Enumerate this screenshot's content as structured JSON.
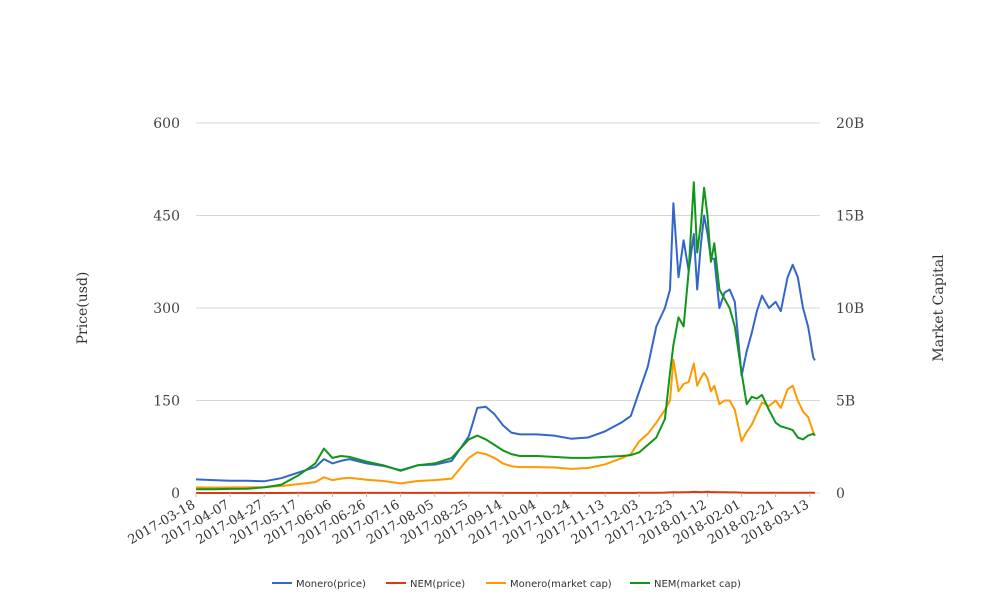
{
  "chart_data": {
    "type": "line",
    "title": "",
    "ylabel": "Price(usd)",
    "y2label": "Market Capital",
    "ylim": [
      0,
      600
    ],
    "y2lim": [
      0,
      20000000000
    ],
    "y_ticks": [
      "0",
      "150",
      "300",
      "450",
      "600"
    ],
    "y2_ticks": [
      "0",
      "5B",
      "10B",
      "15B",
      "20B"
    ],
    "x_ticks": [
      "2017-03-18",
      "2017-04-07",
      "2017-04-27",
      "2017-05-17",
      "2017-06-06",
      "2017-06-26",
      "2017-07-16",
      "2017-08-05",
      "2017-08-25",
      "2017-09-14",
      "2017-10-04",
      "2017-10-24",
      "2017-11-13",
      "2017-12-03",
      "2017-12-23",
      "2018-01-12",
      "2018-02-01",
      "2018-02-21",
      "2018-03-13"
    ],
    "x": [
      "2017-03-18",
      "2017-03-28",
      "2017-04-07",
      "2017-04-17",
      "2017-04-27",
      "2017-05-07",
      "2017-05-17",
      "2017-05-27",
      "2017-06-01",
      "2017-06-06",
      "2017-06-11",
      "2017-06-16",
      "2017-06-26",
      "2017-07-06",
      "2017-07-16",
      "2017-07-26",
      "2017-08-05",
      "2017-08-15",
      "2017-08-25",
      "2017-08-30",
      "2017-09-04",
      "2017-09-09",
      "2017-09-14",
      "2017-09-19",
      "2017-09-24",
      "2017-10-04",
      "2017-10-14",
      "2017-10-24",
      "2017-11-03",
      "2017-11-13",
      "2017-11-23",
      "2017-11-28",
      "2017-12-03",
      "2017-12-08",
      "2017-12-13",
      "2017-12-18",
      "2017-12-21",
      "2017-12-23",
      "2017-12-26",
      "2017-12-29",
      "2018-01-01",
      "2018-01-04",
      "2018-01-06",
      "2018-01-08",
      "2018-01-10",
      "2018-01-12",
      "2018-01-14",
      "2018-01-16",
      "2018-01-19",
      "2018-01-22",
      "2018-01-25",
      "2018-01-28",
      "2018-02-01",
      "2018-02-04",
      "2018-02-07",
      "2018-02-10",
      "2018-02-13",
      "2018-02-17",
      "2018-02-21",
      "2018-02-24",
      "2018-02-28",
      "2018-03-03",
      "2018-03-06",
      "2018-03-09",
      "2018-03-12",
      "2018-03-15",
      "2018-03-16"
    ],
    "series": [
      {
        "name": "Monero(price)",
        "color": "#3366cc",
        "axis": "left",
        "values": [
          22,
          21,
          20,
          20,
          19,
          24,
          33,
          42,
          55,
          48,
          52,
          55,
          48,
          44,
          37,
          45,
          46,
          52,
          92,
          138,
          140,
          128,
          110,
          98,
          95,
          95,
          93,
          88,
          90,
          100,
          115,
          125,
          165,
          205,
          270,
          300,
          330,
          470,
          350,
          410,
          360,
          420,
          330,
          400,
          450,
          420,
          380,
          380,
          300,
          325,
          330,
          310,
          190,
          230,
          260,
          295,
          320,
          300,
          310,
          295,
          350,
          370,
          350,
          300,
          270,
          220,
          215
        ]
      },
      {
        "name": "NEM(price)",
        "color": "#dc3912",
        "axis": "left",
        "values": [
          0.02,
          0.02,
          0.02,
          0.02,
          0.03,
          0.04,
          0.1,
          0.19,
          0.21,
          0.2,
          0.2,
          0.19,
          0.16,
          0.15,
          0.13,
          0.17,
          0.18,
          0.21,
          0.26,
          0.28,
          0.27,
          0.25,
          0.24,
          0.22,
          0.21,
          0.2,
          0.2,
          0.19,
          0.19,
          0.2,
          0.21,
          0.22,
          0.25,
          0.3,
          0.55,
          0.72,
          0.9,
          1.1,
          0.95,
          1.2,
          1.3,
          1.8,
          1.6,
          1.5,
          1.7,
          1.9,
          1.4,
          1.5,
          1.2,
          1.1,
          1.05,
          1.0,
          0.68,
          0.55,
          0.5,
          0.48,
          0.5,
          0.45,
          0.4,
          0.38,
          0.37,
          0.35,
          0.33,
          0.33,
          0.32,
          0.31,
          0.3
        ]
      },
      {
        "name": "Monero(market cap)",
        "color": "#ff9900",
        "axis": "right",
        "values": [
          300000000,
          290000000,
          300000000,
          310000000,
          320000000,
          380000000,
          480000000,
          590000000,
          850000000,
          700000000,
          780000000,
          820000000,
          720000000,
          650000000,
          520000000,
          650000000,
          700000000,
          780000000,
          1900000000,
          2200000000,
          2100000000,
          1900000000,
          1600000000,
          1450000000,
          1400000000,
          1400000000,
          1380000000,
          1300000000,
          1350000000,
          1550000000,
          1900000000,
          2100000000,
          2800000000,
          3200000000,
          3800000000,
          4500000000,
          5000000000,
          7200000000,
          5500000000,
          5900000000,
          6000000000,
          7000000000,
          5800000000,
          6200000000,
          6500000000,
          6200000000,
          5500000000,
          5800000000,
          4800000000,
          5000000000,
          5000000000,
          4500000000,
          2800000000,
          3300000000,
          3700000000,
          4300000000,
          4900000000,
          4700000000,
          5000000000,
          4600000000,
          5600000000,
          5800000000,
          5000000000,
          4400000000,
          4100000000,
          3300000000,
          3100000000
        ]
      },
      {
        "name": "NEM(market cap)",
        "color": "#109618",
        "axis": "right",
        "values": [
          200000000,
          200000000,
          220000000,
          230000000,
          300000000,
          450000000,
          950000000,
          1600000000,
          2400000000,
          1900000000,
          2000000000,
          1950000000,
          1700000000,
          1500000000,
          1200000000,
          1500000000,
          1600000000,
          1900000000,
          2900000000,
          3100000000,
          2900000000,
          2600000000,
          2300000000,
          2100000000,
          2000000000,
          2000000000,
          1950000000,
          1900000000,
          1900000000,
          1950000000,
          2000000000,
          2050000000,
          2200000000,
          2600000000,
          3000000000,
          4000000000,
          6500000000,
          8000000000,
          9500000000,
          9000000000,
          12000000000,
          16800000000,
          13000000000,
          14500000000,
          16500000000,
          15000000000,
          12500000000,
          13500000000,
          11000000000,
          10500000000,
          10000000000,
          9000000000,
          6500000000,
          4800000000,
          5200000000,
          5100000000,
          5300000000,
          4500000000,
          3800000000,
          3600000000,
          3500000000,
          3400000000,
          3000000000,
          2900000000,
          3100000000,
          3200000000,
          3100000000
        ]
      }
    ],
    "legend": "bottom",
    "grid": true
  }
}
